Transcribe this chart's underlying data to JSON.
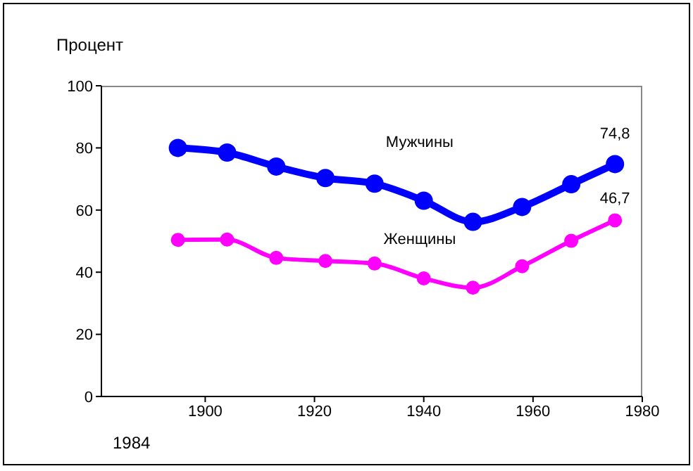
{
  "chart_data": {
    "type": "line",
    "ylabel": "Процент",
    "x": [
      1895,
      1904,
      1913,
      1922,
      1931,
      1940,
      1949,
      1958,
      1967,
      1975
    ],
    "series": [
      {
        "name": "Мужчины",
        "color": "#0000ff",
        "values": [
          80,
          78.5,
          74,
          70.3,
          68.5,
          63,
          56.2,
          61,
          68.3,
          74.8
        ]
      },
      {
        "name": "Женщины",
        "color": "#ff00ff",
        "values": [
          50.4,
          50.5,
          44.6,
          43.6,
          42.8,
          38,
          35,
          41.9,
          50.1,
          56.7
        ]
      }
    ],
    "xlim": [
      1881,
      1980
    ],
    "xticks": [
      1900,
      1920,
      1940,
      1960,
      1980
    ],
    "ylim": [
      0,
      100
    ],
    "yticks": [
      0,
      20,
      40,
      60,
      80,
      100
    ],
    "annotations": [
      {
        "text": "74,8",
        "x": 1975,
        "y": 74.8
      },
      "46,7",
      "1984"
    ],
    "grid": false,
    "marker": "circle",
    "line_style": "solid"
  }
}
